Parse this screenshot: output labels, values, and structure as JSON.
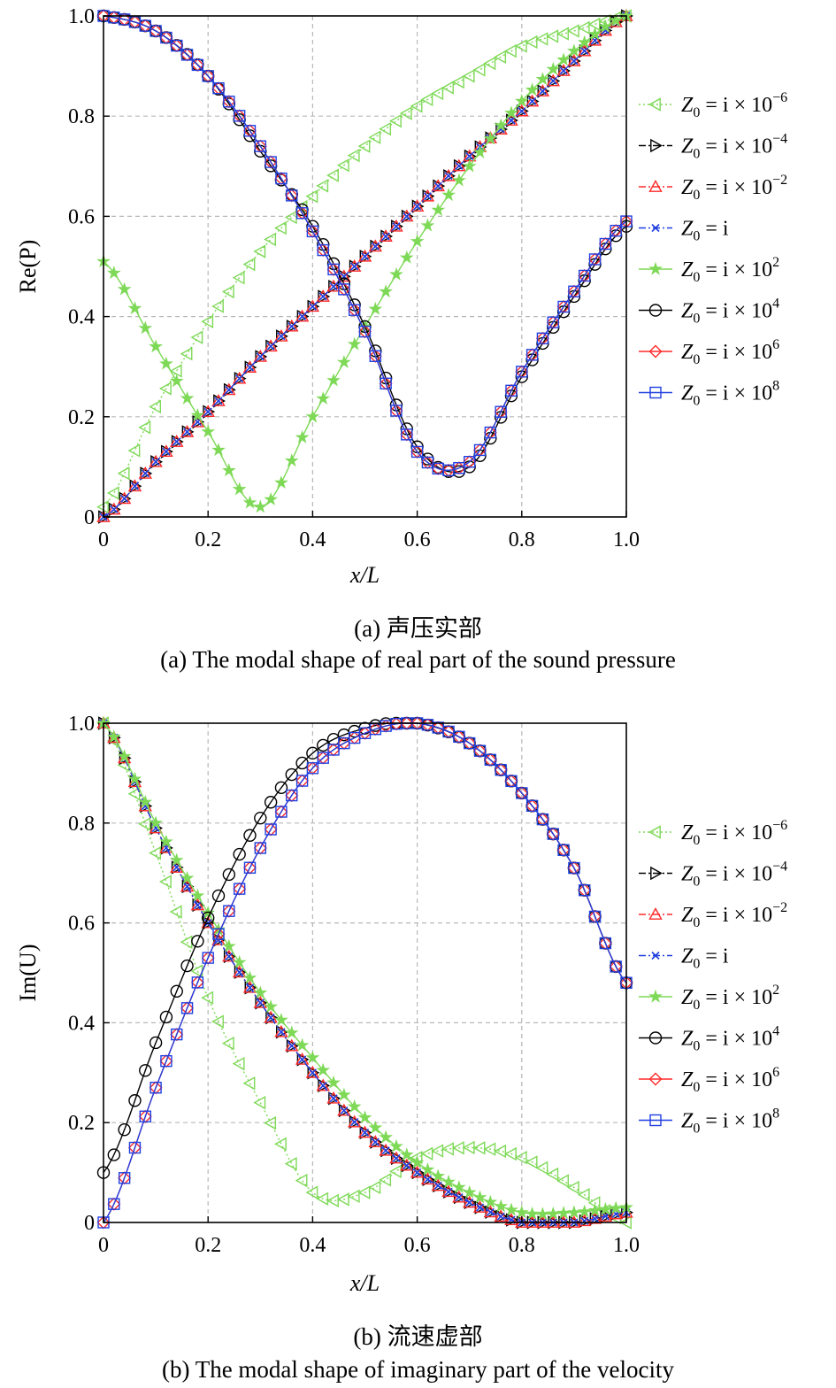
{
  "chart_data": [
    {
      "type": "line",
      "caption_cn": "(a) 声压实部",
      "caption_en": "(a) The modal shape of real part of the sound pressure",
      "xlabel": "x/L",
      "ylabel": "Re(P)",
      "xlim": [
        0,
        1.0
      ],
      "ylim": [
        0,
        1.0
      ],
      "xticks": [
        "0",
        "0.2",
        "0.4",
        "0.6",
        "0.8",
        "1.0"
      ],
      "yticks": [
        "0",
        "0.2",
        "0.4",
        "0.6",
        "0.8",
        "1.0"
      ],
      "grid": true,
      "legend_position": "right",
      "x": [
        0,
        0.1,
        0.2,
        0.3,
        0.4,
        0.5,
        0.6,
        0.7,
        0.8,
        0.9,
        1.0
      ],
      "series": [
        {
          "name": "Z0 = i × 10^-6",
          "values": [
            0.02,
            0.22,
            0.39,
            0.53,
            0.64,
            0.74,
            0.82,
            0.88,
            0.94,
            0.97,
            1.0
          ]
        },
        {
          "name": "Z0 = i × 10^-4",
          "values": [
            0.0,
            0.11,
            0.21,
            0.32,
            0.42,
            0.52,
            0.62,
            0.72,
            0.81,
            0.91,
            1.0
          ]
        },
        {
          "name": "Z0 = i × 10^-2",
          "values": [
            0.0,
            0.11,
            0.21,
            0.32,
            0.42,
            0.52,
            0.62,
            0.72,
            0.81,
            0.91,
            1.0
          ]
        },
        {
          "name": "Z0 = i",
          "values": [
            0.0,
            0.11,
            0.21,
            0.32,
            0.42,
            0.52,
            0.62,
            0.72,
            0.81,
            0.91,
            1.0
          ]
        },
        {
          "name": "Z0 = i × 10^2",
          "values": [
            0.51,
            0.34,
            0.17,
            0.02,
            0.2,
            0.38,
            0.55,
            0.7,
            0.83,
            0.93,
            1.0
          ]
        },
        {
          "name": "Z0 = i × 10^4",
          "values": [
            1.0,
            0.97,
            0.88,
            0.73,
            0.58,
            0.38,
            0.14,
            0.1,
            0.28,
            0.44,
            0.58
          ]
        },
        {
          "name": "Z0 = i × 10^6",
          "values": [
            1.0,
            0.97,
            0.88,
            0.74,
            0.57,
            0.37,
            0.13,
            0.11,
            0.29,
            0.45,
            0.59
          ]
        },
        {
          "name": "Z0 = i × 10^8",
          "values": [
            1.0,
            0.97,
            0.88,
            0.74,
            0.57,
            0.37,
            0.13,
            0.11,
            0.29,
            0.45,
            0.59
          ]
        }
      ]
    },
    {
      "type": "line",
      "caption_cn": "(b) 流速虚部",
      "caption_en": "(b) The modal shape of imaginary part of the velocity",
      "xlabel": "x/L",
      "ylabel": "Im(U)",
      "xlim": [
        0,
        1.0
      ],
      "ylim": [
        0,
        1.0
      ],
      "xticks": [
        "0",
        "0.2",
        "0.4",
        "0.6",
        "0.8",
        "1.0"
      ],
      "yticks": [
        "0",
        "0.2",
        "0.4",
        "0.6",
        "0.8",
        "1.0"
      ],
      "grid": true,
      "legend_position": "right",
      "x": [
        0,
        0.1,
        0.2,
        0.3,
        0.4,
        0.5,
        0.6,
        0.7,
        0.8,
        0.9,
        1.0
      ],
      "series": [
        {
          "name": "Z0 = i × 10^-6",
          "values": [
            1.0,
            0.74,
            0.45,
            0.24,
            0.06,
            0.06,
            0.13,
            0.15,
            0.13,
            0.07,
            0.0
          ]
        },
        {
          "name": "Z0 = i × 10^-4",
          "values": [
            1.0,
            0.79,
            0.6,
            0.44,
            0.3,
            0.18,
            0.1,
            0.04,
            0.0,
            0.0,
            0.02
          ]
        },
        {
          "name": "Z0 = i × 10^-2",
          "values": [
            1.0,
            0.79,
            0.6,
            0.44,
            0.3,
            0.18,
            0.1,
            0.04,
            0.0,
            0.0,
            0.02
          ]
        },
        {
          "name": "Z0 = i",
          "values": [
            1.0,
            0.79,
            0.6,
            0.44,
            0.3,
            0.18,
            0.1,
            0.04,
            0.0,
            0.0,
            0.02
          ]
        },
        {
          "name": "Z0 = i × 10^2",
          "values": [
            1.0,
            0.8,
            0.62,
            0.46,
            0.33,
            0.21,
            0.12,
            0.06,
            0.02,
            0.02,
            0.03
          ]
        },
        {
          "name": "Z0 = i × 10^4",
          "values": [
            0.1,
            0.36,
            0.61,
            0.81,
            0.94,
            0.99,
            1.0,
            0.96,
            0.86,
            0.71,
            0.48
          ]
        },
        {
          "name": "Z0 = i × 10^6",
          "values": [
            0.0,
            0.27,
            0.53,
            0.75,
            0.91,
            0.98,
            1.0,
            0.96,
            0.86,
            0.71,
            0.48
          ]
        },
        {
          "name": "Z0 = i × 10^8",
          "values": [
            0.0,
            0.27,
            0.53,
            0.75,
            0.91,
            0.98,
            1.0,
            0.96,
            0.86,
            0.71,
            0.48
          ]
        }
      ]
    }
  ],
  "legend": [
    {
      "lhs": "Z",
      "sub": "0",
      "rhs": " = i × 10",
      "sup": "−6",
      "color": "#7ed957",
      "marker": "triangle-left",
      "dash": "dotted"
    },
    {
      "lhs": "Z",
      "sub": "0",
      "rhs": " = i × 10",
      "sup": "−4",
      "color": "#000000",
      "marker": "triangle-right",
      "dash": "dashdot"
    },
    {
      "lhs": "Z",
      "sub": "0",
      "rhs": " = i × 10",
      "sup": "−2",
      "color": "#ff2a2a",
      "marker": "triangle-up",
      "dash": "dashdot"
    },
    {
      "lhs": "Z",
      "sub": "0",
      "rhs": " = i",
      "sup": "",
      "color": "#1f3fe0",
      "marker": "x",
      "dash": "dashdot"
    },
    {
      "lhs": "Z",
      "sub": "0",
      "rhs": " = i × 10",
      "sup": "2",
      "color": "#7ed957",
      "marker": "star",
      "dash": "solid"
    },
    {
      "lhs": "Z",
      "sub": "0",
      "rhs": " = i × 10",
      "sup": "4",
      "color": "#000000",
      "marker": "circle",
      "dash": "solid"
    },
    {
      "lhs": "Z",
      "sub": "0",
      "rhs": " = i × 10",
      "sup": "6",
      "color": "#ff2a2a",
      "marker": "diamond",
      "dash": "solid"
    },
    {
      "lhs": "Z",
      "sub": "0",
      "rhs": " = i × 10",
      "sup": "8",
      "color": "#1f3fe0",
      "marker": "square",
      "dash": "solid"
    }
  ]
}
